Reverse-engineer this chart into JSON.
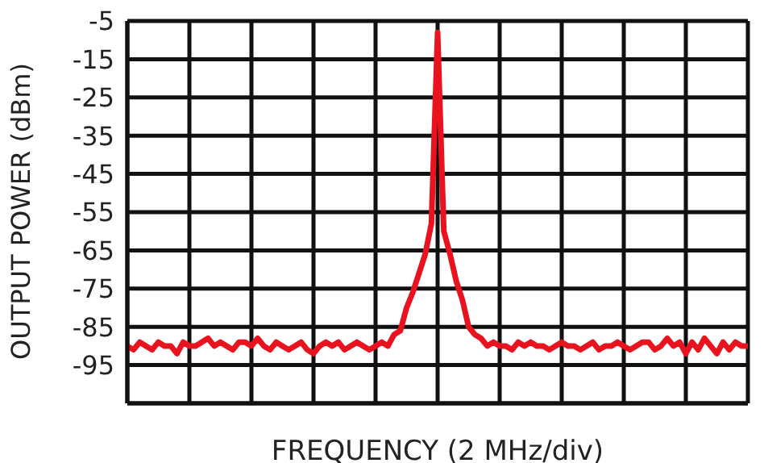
{
  "chart_data": {
    "type": "line",
    "xlabel": "FREQUENCY (2 MHz/div)",
    "ylabel": "OUTPUT POWER (dBm)",
    "categories": [
      null,
      null,
      null,
      null,
      null,
      null,
      null,
      null,
      null,
      null,
      null,
      null,
      null,
      null,
      null,
      null,
      null,
      null,
      null,
      null,
      null,
      null,
      null,
      null,
      null,
      null,
      null,
      null,
      null,
      null,
      null,
      null,
      null,
      null,
      null,
      null,
      null,
      null,
      null,
      null,
      null,
      null,
      null,
      null,
      null,
      null,
      null,
      null,
      null,
      null,
      null,
      null,
      null,
      null,
      null,
      null,
      null,
      null,
      null,
      null,
      null,
      null,
      null,
      null,
      null,
      null,
      null,
      null,
      null,
      null,
      null,
      null,
      null,
      null,
      null,
      null,
      null,
      null,
      null,
      null,
      null,
      null,
      null,
      null,
      null,
      null,
      null,
      null,
      null,
      null,
      null,
      null,
      null,
      null,
      null,
      null,
      null,
      null,
      null,
      null,
      null
    ],
    "ylim": [
      -105,
      -5
    ],
    "yticks": [
      -5,
      -15,
      -25,
      -35,
      -45,
      -55,
      -65,
      -75,
      -85,
      -95
    ],
    "tick_labels": "y",
    "grid": true,
    "marker": "none",
    "line_style": "solid",
    "series": [
      {
        "color": "#e8131f",
        "values": [
          -90,
          -91,
          -89,
          -90,
          -91,
          -89,
          -90,
          -90,
          -92,
          -89,
          -90,
          -90,
          -89,
          -88,
          -90,
          -89,
          -90,
          -91,
          -89,
          -89,
          -90,
          -88,
          -90,
          -91,
          -89,
          -90,
          -91,
          -90,
          -89,
          -91,
          -92,
          -90,
          -89,
          -90,
          -89,
          -91,
          -90,
          -89,
          -90,
          -91,
          -90,
          -89,
          -90,
          -87,
          -86,
          -80,
          -76,
          -71,
          -66,
          -58,
          -8,
          -60,
          -66,
          -73,
          -78,
          -85,
          -87,
          -88,
          -90,
          -89,
          -90,
          -90,
          -91,
          -89,
          -90,
          -89,
          -90,
          -90,
          -91,
          -90,
          -89,
          -90,
          -90,
          -91,
          -90,
          -89,
          -91,
          -90,
          -90,
          -89,
          -90,
          -91,
          -90,
          -89,
          -89,
          -91,
          -90,
          -88,
          -90,
          -89,
          -92,
          -89,
          -91,
          -88,
          -90,
          -92,
          -89,
          -91,
          -89,
          -90,
          -90
        ]
      }
    ]
  }
}
